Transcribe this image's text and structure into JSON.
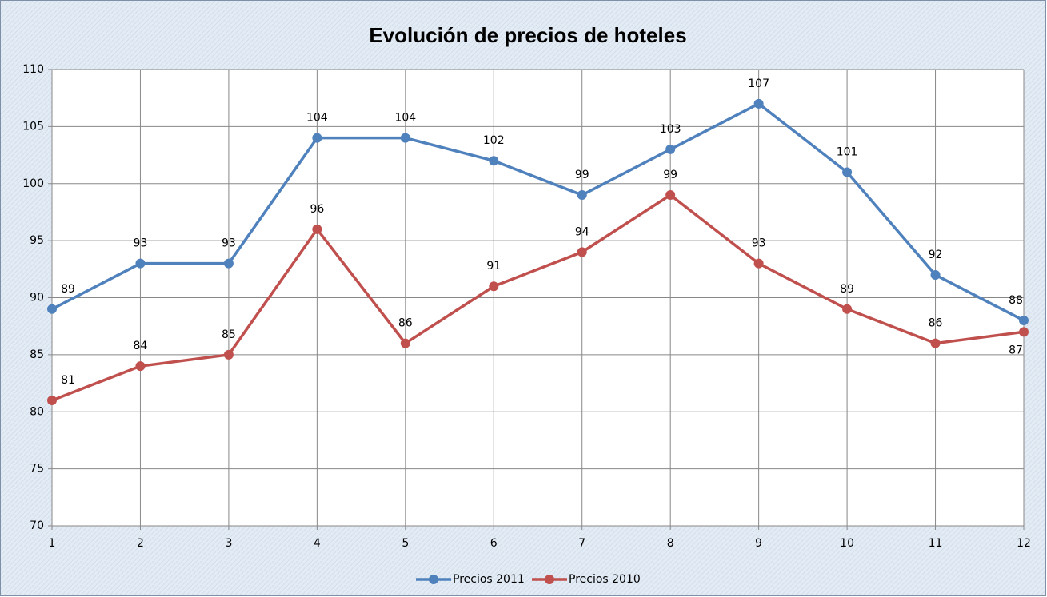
{
  "chart_data": {
    "type": "line",
    "title": "Evolución de precios de hoteles",
    "x": [
      1,
      2,
      3,
      4,
      5,
      6,
      7,
      8,
      9,
      10,
      11,
      12
    ],
    "xlim": [
      1,
      12
    ],
    "xticks": [
      1,
      2,
      3,
      4,
      5,
      6,
      7,
      8,
      9,
      10,
      11,
      12
    ],
    "ylim": [
      70,
      110
    ],
    "yticks": [
      70,
      75,
      80,
      85,
      90,
      95,
      100,
      105,
      110
    ],
    "grid": true,
    "legend": "bottom",
    "series": [
      {
        "name": "Precios 2011",
        "color": "#4f81bd",
        "values": [
          89,
          93,
          93,
          104,
          104,
          102,
          99,
          103,
          107,
          101,
          92,
          88
        ]
      },
      {
        "name": "Precios 2010",
        "color": "#c0504d",
        "values": [
          81,
          84,
          85,
          96,
          86,
          91,
          94,
          99,
          93,
          89,
          86,
          87
        ]
      }
    ]
  }
}
